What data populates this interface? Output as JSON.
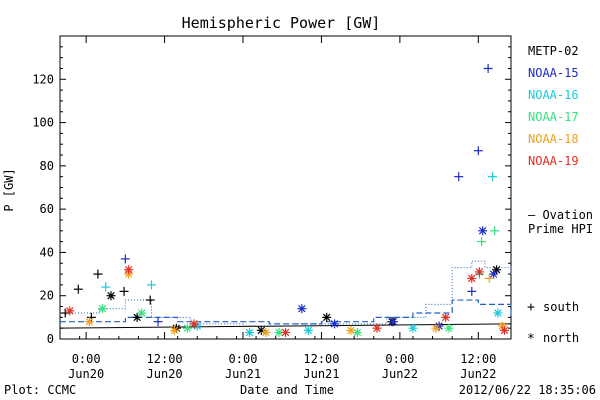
{
  "chart_data": {
    "type": "scatter",
    "title": "Hemispheric Power [GW]",
    "ylabel": "P [GW]",
    "xlabel": "Date and Time",
    "ylim": [
      0,
      140
    ],
    "xlim": [
      "2012-06-19T20:00",
      "2012-06-22T17:00"
    ],
    "y_ticks": [
      0,
      20,
      40,
      60,
      80,
      100,
      120
    ],
    "x_ticks": [
      {
        "x": "2012-06-20T00:00",
        "time": "0:00",
        "date": "Jun20"
      },
      {
        "x": "2012-06-20T12:00",
        "time": "12:00",
        "date": "Jun20"
      },
      {
        "x": "2012-06-21T00:00",
        "time": "0:00",
        "date": "Jun21"
      },
      {
        "x": "2012-06-21T12:00",
        "time": "12:00",
        "date": "Jun21"
      },
      {
        "x": "2012-06-22T00:00",
        "time": "0:00",
        "date": "Jun22"
      },
      {
        "x": "2012-06-22T12:00",
        "time": "12:00",
        "date": "Jun22"
      }
    ],
    "legend_placement": "right",
    "series": [
      {
        "name": "METP-02",
        "color": "#000000",
        "points": [
          {
            "x": "2012-06-19T20:48",
            "y": 12,
            "m": "south"
          },
          {
            "x": "2012-06-19T22:48",
            "y": 23,
            "m": "south"
          },
          {
            "x": "2012-06-20T00:48",
            "y": 10,
            "m": "south"
          },
          {
            "x": "2012-06-20T01:48",
            "y": 30,
            "m": "south"
          },
          {
            "x": "2012-06-20T03:48",
            "y": 20,
            "m": "north"
          },
          {
            "x": "2012-06-20T05:48",
            "y": 22,
            "m": "south"
          },
          {
            "x": "2012-06-20T07:48",
            "y": 10,
            "m": "north"
          },
          {
            "x": "2012-06-20T09:48",
            "y": 18,
            "m": "south"
          },
          {
            "x": "2012-06-20T13:48",
            "y": 5,
            "m": "north"
          },
          {
            "x": "2012-06-21T02:48",
            "y": 4,
            "m": "north"
          },
          {
            "x": "2012-06-21T12:48",
            "y": 10,
            "m": "north"
          },
          {
            "x": "2012-06-21T22:48",
            "y": 8,
            "m": "north"
          },
          {
            "x": "2012-06-22T14:48",
            "y": 32,
            "m": "north"
          }
        ]
      },
      {
        "name": "NOAA-15",
        "color": "#1c2cc8",
        "points": [
          {
            "x": "2012-06-20T06:00",
            "y": 37,
            "m": "south"
          },
          {
            "x": "2012-06-20T11:00",
            "y": 8,
            "m": "south"
          },
          {
            "x": "2012-06-21T09:00",
            "y": 14,
            "m": "north"
          },
          {
            "x": "2012-06-21T14:00",
            "y": 7,
            "m": "north"
          },
          {
            "x": "2012-06-21T23:00",
            "y": 8,
            "m": "north"
          },
          {
            "x": "2012-06-22T06:00",
            "y": 6,
            "m": "north"
          },
          {
            "x": "2012-06-22T09:00",
            "y": 75,
            "m": "south"
          },
          {
            "x": "2012-06-22T11:00",
            "y": 22,
            "m": "south"
          },
          {
            "x": "2012-06-22T12:00",
            "y": 87,
            "m": "south"
          },
          {
            "x": "2012-06-22T12:40",
            "y": 50,
            "m": "north"
          },
          {
            "x": "2012-06-22T13:30",
            "y": 125,
            "m": "south"
          },
          {
            "x": "2012-06-22T14:20",
            "y": 30,
            "m": "north"
          }
        ]
      },
      {
        "name": "NOAA-16",
        "color": "#1cc8d8",
        "points": [
          {
            "x": "2012-06-20T03:00",
            "y": 24,
            "m": "south"
          },
          {
            "x": "2012-06-20T10:00",
            "y": 25,
            "m": "south"
          },
          {
            "x": "2012-06-20T17:00",
            "y": 6,
            "m": "north"
          },
          {
            "x": "2012-06-21T01:00",
            "y": 3,
            "m": "north"
          },
          {
            "x": "2012-06-21T10:00",
            "y": 4,
            "m": "north"
          },
          {
            "x": "2012-06-22T02:00",
            "y": 5,
            "m": "north"
          },
          {
            "x": "2012-06-22T12:10",
            "y": 30,
            "m": "south"
          },
          {
            "x": "2012-06-22T14:10",
            "y": 75,
            "m": "south"
          },
          {
            "x": "2012-06-22T15:00",
            "y": 12,
            "m": "north"
          }
        ]
      },
      {
        "name": "NOAA-17",
        "color": "#38e080",
        "points": [
          {
            "x": "2012-06-20T02:30",
            "y": 14,
            "m": "north"
          },
          {
            "x": "2012-06-20T08:30",
            "y": 12,
            "m": "north"
          },
          {
            "x": "2012-06-20T15:30",
            "y": 5,
            "m": "north"
          },
          {
            "x": "2012-06-21T05:30",
            "y": 3,
            "m": "north"
          },
          {
            "x": "2012-06-21T17:30",
            "y": 3,
            "m": "north"
          },
          {
            "x": "2012-06-22T07:30",
            "y": 5,
            "m": "north"
          },
          {
            "x": "2012-06-22T12:30",
            "y": 45,
            "m": "south"
          },
          {
            "x": "2012-06-22T14:30",
            "y": 50,
            "m": "south"
          }
        ]
      },
      {
        "name": "NOAA-18",
        "color": "#f0a020",
        "points": [
          {
            "x": "2012-06-20T00:30",
            "y": 8,
            "m": "north"
          },
          {
            "x": "2012-06-20T06:30",
            "y": 30,
            "m": "north"
          },
          {
            "x": "2012-06-20T13:30",
            "y": 4,
            "m": "north"
          },
          {
            "x": "2012-06-21T03:30",
            "y": 3,
            "m": "north"
          },
          {
            "x": "2012-06-21T16:30",
            "y": 4,
            "m": "north"
          },
          {
            "x": "2012-06-22T05:30",
            "y": 5,
            "m": "north"
          },
          {
            "x": "2012-06-22T13:40",
            "y": 28,
            "m": "south"
          },
          {
            "x": "2012-06-22T15:40",
            "y": 6,
            "m": "north"
          }
        ]
      },
      {
        "name": "NOAA-19",
        "color": "#e03020",
        "points": [
          {
            "x": "2012-06-19T21:30",
            "y": 13,
            "m": "north"
          },
          {
            "x": "2012-06-20T06:30",
            "y": 32,
            "m": "north"
          },
          {
            "x": "2012-06-20T16:30",
            "y": 7,
            "m": "north"
          },
          {
            "x": "2012-06-21T06:30",
            "y": 3,
            "m": "north"
          },
          {
            "x": "2012-06-21T20:30",
            "y": 5,
            "m": "north"
          },
          {
            "x": "2012-06-22T07:00",
            "y": 10,
            "m": "north"
          },
          {
            "x": "2012-06-22T11:00",
            "y": 28,
            "m": "north"
          },
          {
            "x": "2012-06-22T12:10",
            "y": 31,
            "m": "north"
          },
          {
            "x": "2012-06-22T16:00",
            "y": 4,
            "m": "north"
          }
        ]
      }
    ],
    "ovation": {
      "name_line1": "— Ovation",
      "name_line2": "Prime HPI",
      "color": "#2060c8",
      "south_dotted": [
        [
          "2012-06-19T20:00",
          12
        ],
        [
          "2012-06-20T02:00",
          14
        ],
        [
          "2012-06-20T06:00",
          18
        ],
        [
          "2012-06-20T10:00",
          10
        ],
        [
          "2012-06-20T16:00",
          7
        ],
        [
          "2012-06-21T00:00",
          6
        ],
        [
          "2012-06-21T08:00",
          7
        ],
        [
          "2012-06-21T16:00",
          7
        ],
        [
          "2012-06-21T22:00",
          10
        ],
        [
          "2012-06-22T04:00",
          16
        ],
        [
          "2012-06-22T08:00",
          33
        ],
        [
          "2012-06-22T11:00",
          36
        ],
        [
          "2012-06-22T13:00",
          33
        ],
        [
          "2012-06-22T17:00",
          30
        ]
      ],
      "north_dash": [
        [
          "2012-06-19T20:00",
          8
        ],
        [
          "2012-06-20T06:00",
          10
        ],
        [
          "2012-06-20T14:00",
          8
        ],
        [
          "2012-06-21T04:00",
          7
        ],
        [
          "2012-06-21T12:00",
          8
        ],
        [
          "2012-06-21T20:00",
          10
        ],
        [
          "2012-06-22T02:00",
          12
        ],
        [
          "2012-06-22T08:00",
          18
        ],
        [
          "2012-06-22T12:00",
          16
        ],
        [
          "2012-06-22T17:00",
          10
        ]
      ],
      "black_ref": [
        [
          "2012-06-19T20:00",
          5
        ],
        [
          "2012-06-22T17:00",
          7
        ]
      ]
    },
    "marker_legend": {
      "south_symbol": "+",
      "south_label": "south",
      "north_symbol": "*",
      "north_label": "north"
    }
  },
  "footer": {
    "left": "Plot: CCMC",
    "center": "Date and Time",
    "right": "2012/06/22 18:35:06"
  }
}
